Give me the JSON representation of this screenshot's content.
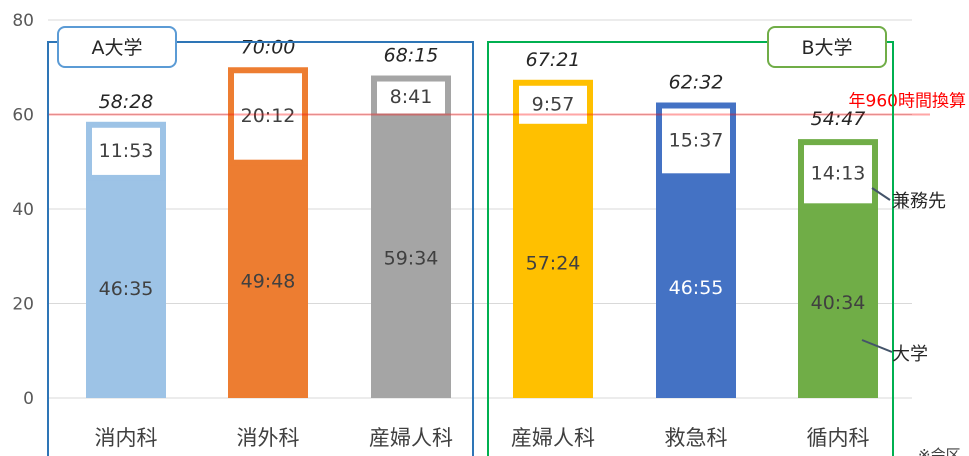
{
  "chart_data": {
    "type": "bar",
    "stacked": true,
    "yticks": [
      "0",
      "20",
      "40",
      "60",
      "80"
    ],
    "ylim": [
      0,
      80
    ],
    "grid": true,
    "categories": [
      "消内科",
      "消外科",
      "産婦人科",
      "産婦人科",
      "救急科",
      "循内科"
    ],
    "groups": [
      {
        "label": "A大学",
        "color": "#5b9bd5",
        "bars": [
          0,
          1,
          2
        ]
      },
      {
        "label": "B大学",
        "color": "#70ad47",
        "bars": [
          3,
          4,
          5
        ]
      }
    ],
    "colors": [
      "#9dc3e6",
      "#ed7d31",
      "#a5a5a5",
      "#ffc000",
      "#4472c4",
      "#70ad47"
    ],
    "series": [
      {
        "name": "大学",
        "values": [
          46.58,
          49.8,
          59.57,
          57.4,
          46.92,
          40.57
        ],
        "labels": [
          "46:35",
          "49:48",
          "59:34",
          "57:24",
          "46:55",
          "40:34"
        ]
      },
      {
        "name": "兼務先",
        "values": [
          11.88,
          20.2,
          8.68,
          9.95,
          15.62,
          14.22
        ],
        "labels": [
          "11:53",
          "20:12",
          "8:41",
          "9:57",
          "15:37",
          "14:13"
        ]
      }
    ],
    "totals": [
      "58:28",
      "70:00",
      "68:15",
      "67:21",
      "62:32",
      "54:47"
    ],
    "total_values": [
      58.47,
      70.0,
      68.25,
      67.35,
      62.53,
      54.78
    ],
    "reference_line": {
      "value": 60,
      "label": "年960時間換算",
      "color": "#ff0000"
    },
    "annotations": {
      "secondary": "兼務先",
      "primary": "大学"
    },
    "footnote": "※会区"
  }
}
